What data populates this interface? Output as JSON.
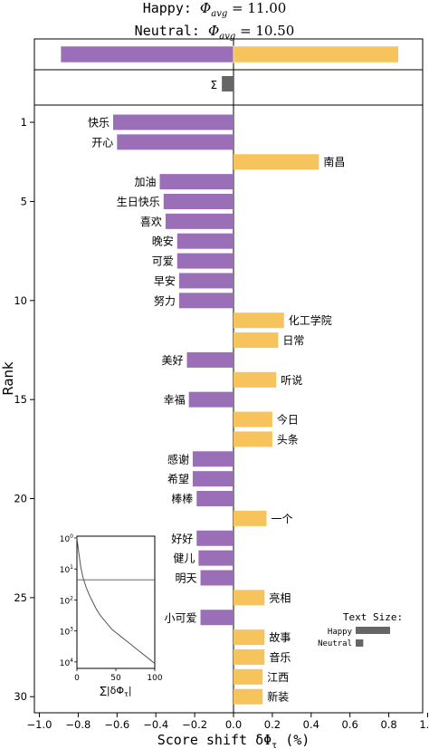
{
  "chart_data": {
    "type": "bar",
    "title_lines": [
      {
        "prefix": "Happy: ",
        "phi": "Φ",
        "sub": "avg",
        "value": " = 11.00"
      },
      {
        "prefix": "Neutral: ",
        "phi": "Φ",
        "sub": "avg",
        "value": " = 10.50"
      }
    ],
    "xlabel": "Score shift δΦ",
    "xlabel_sub": "τ",
    "xlabel_unit": " (%)",
    "ylabel": "Rank",
    "xlim": [
      -1.0,
      1.0
    ],
    "x_ticks": [
      {
        "v": -1.0,
        "label": "−1.0"
      },
      {
        "v": -0.8,
        "label": "−0.8"
      },
      {
        "v": -0.6,
        "label": "−0.6"
      },
      {
        "v": -0.4,
        "label": "−0.4"
      },
      {
        "v": -0.2,
        "label": "−0.2"
      },
      {
        "v": 0.0,
        "label": "0.0"
      },
      {
        "v": 0.2,
        "label": "0.2"
      },
      {
        "v": 0.4,
        "label": "0.4"
      },
      {
        "v": 0.6,
        "label": "0.6"
      },
      {
        "v": 0.8,
        "label": "0.8"
      },
      {
        "v": 1.0,
        "label": "1.0"
      }
    ],
    "y_ticks": [
      {
        "v": 1,
        "label": "1"
      },
      {
        "v": 5,
        "label": "5"
      },
      {
        "v": 10,
        "label": "10"
      },
      {
        "v": 15,
        "label": "15"
      },
      {
        "v": 20,
        "label": "20"
      },
      {
        "v": 25,
        "label": "25"
      },
      {
        "v": 30,
        "label": "30"
      }
    ],
    "colors": {
      "happy": "#9b6fb8",
      "neutral": "#f7c35c",
      "sigma": "#666666"
    },
    "summary": {
      "happy_total": -0.89,
      "neutral_total": 0.85,
      "sigma_value": -0.06,
      "sigma_label": "Σ"
    },
    "words": [
      {
        "rank": 1,
        "word": "快乐",
        "value": -0.62
      },
      {
        "rank": 2,
        "word": "开心",
        "value": -0.6
      },
      {
        "rank": 3,
        "word": "南昌",
        "value": 0.44
      },
      {
        "rank": 4,
        "word": "加油",
        "value": -0.38
      },
      {
        "rank": 5,
        "word": "生日快乐",
        "value": -0.36
      },
      {
        "rank": 6,
        "word": "喜欢",
        "value": -0.35
      },
      {
        "rank": 7,
        "word": "晚安",
        "value": -0.29
      },
      {
        "rank": 8,
        "word": "可爱",
        "value": -0.29
      },
      {
        "rank": 9,
        "word": "早安",
        "value": -0.28
      },
      {
        "rank": 10,
        "word": "努力",
        "value": -0.28
      },
      {
        "rank": 11,
        "word": "化工学院",
        "value": 0.26
      },
      {
        "rank": 12,
        "word": "日常",
        "value": 0.23
      },
      {
        "rank": 13,
        "word": "美好",
        "value": -0.24
      },
      {
        "rank": 14,
        "word": "听说",
        "value": 0.22
      },
      {
        "rank": 15,
        "word": "幸福",
        "value": -0.23
      },
      {
        "rank": 16,
        "word": "今日",
        "value": 0.2
      },
      {
        "rank": 17,
        "word": "头条",
        "value": 0.2
      },
      {
        "rank": 18,
        "word": "感谢",
        "value": -0.21
      },
      {
        "rank": 19,
        "word": "希望",
        "value": -0.21
      },
      {
        "rank": 20,
        "word": "棒棒",
        "value": -0.19
      },
      {
        "rank": 21,
        "word": "一个",
        "value": 0.17
      },
      {
        "rank": 22,
        "word": "好好",
        "value": -0.19
      },
      {
        "rank": 23,
        "word": "健儿",
        "value": -0.18
      },
      {
        "rank": 24,
        "word": "明天",
        "value": -0.17
      },
      {
        "rank": 25,
        "word": "亮相",
        "value": 0.16
      },
      {
        "rank": 26,
        "word": "小可爱",
        "value": -0.17
      },
      {
        "rank": 27,
        "word": "故事",
        "value": 0.16
      },
      {
        "rank": 28,
        "word": "音乐",
        "value": 0.16
      },
      {
        "rank": 29,
        "word": "江西",
        "value": 0.15
      },
      {
        "rank": 30,
        "word": "新装",
        "value": 0.15
      }
    ],
    "inset": {
      "x_ticks": [
        {
          "v": 0,
          "label": "0"
        },
        {
          "v": 50,
          "label": "50"
        },
        {
          "v": 100,
          "label": "100"
        }
      ],
      "y_ticks": [
        {
          "e": 0,
          "label": "10",
          "sup": "0"
        },
        {
          "e": 1,
          "label": "10",
          "sup": "1"
        },
        {
          "e": 2,
          "label": "10",
          "sup": "2"
        },
        {
          "e": 3,
          "label": "10",
          "sup": "3"
        },
        {
          "e": 4,
          "label": "10",
          "sup": "4"
        }
      ],
      "xlabel": "∑|δΦ",
      "xlabel_sub": "τ",
      "xlabel_end": "|",
      "hline": 1.35,
      "curve": [
        [
          0,
          0
        ],
        [
          2,
          0.4
        ],
        [
          5,
          0.95
        ],
        [
          8,
          1.3
        ],
        [
          12,
          1.6
        ],
        [
          16,
          1.85
        ],
        [
          20,
          2.05
        ],
        [
          25,
          2.3
        ],
        [
          30,
          2.5
        ],
        [
          35,
          2.65
        ],
        [
          40,
          2.8
        ],
        [
          45,
          2.95
        ],
        [
          50,
          3.05
        ],
        [
          55,
          3.15
        ],
        [
          60,
          3.25
        ],
        [
          65,
          3.35
        ],
        [
          70,
          3.45
        ],
        [
          75,
          3.55
        ],
        [
          80,
          3.65
        ],
        [
          85,
          3.75
        ],
        [
          90,
          3.85
        ],
        [
          95,
          3.95
        ],
        [
          100,
          4.05
        ]
      ]
    },
    "legend": {
      "title": "Text Size:",
      "happy": "Happy",
      "neutral": "Neutral",
      "happy_size": 1.0,
      "neutral_size": 0.22
    }
  }
}
